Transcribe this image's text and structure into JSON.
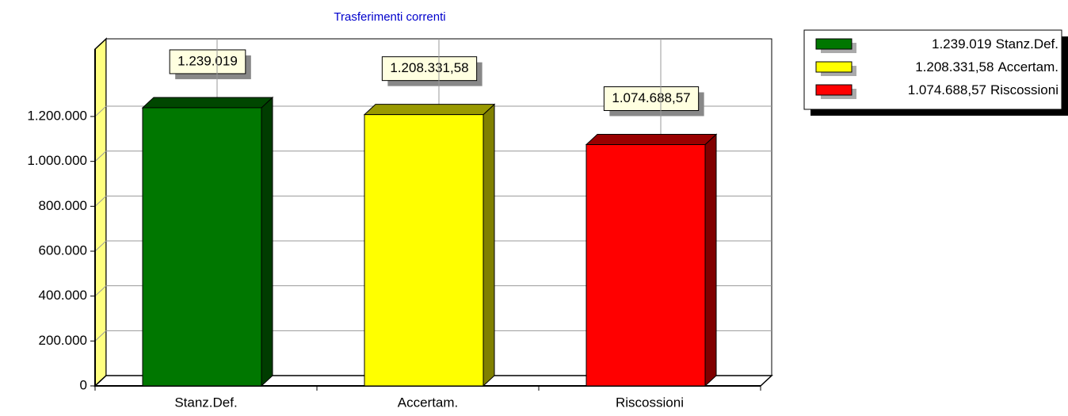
{
  "chart_data": {
    "type": "bar3d",
    "title": "Trasferimenti correnti",
    "categories": [
      "Stanz.Def.",
      "Accertam.",
      "Riscossioni"
    ],
    "values": [
      1239019,
      1208331.58,
      1074688.57
    ],
    "value_labels": [
      "1.239.019",
      "1.208.331,58",
      "1.074.688,57"
    ],
    "colors": [
      "#007700",
      "#ffff00",
      "#ff0000"
    ],
    "ylim": [
      0,
      1500000
    ],
    "yticks": [
      0,
      {
        "value": 200000,
        "label": "200.000"
      },
      {
        "value": 400000,
        "label": "400.000"
      },
      {
        "value": 600000,
        "label": "600.000"
      },
      {
        "value": 800000,
        "label": "800.000"
      },
      {
        "value": 1000000,
        "label": "1.000.000"
      },
      {
        "value": 1200000,
        "label": "1.200.000"
      }
    ],
    "grid": true,
    "legend": "top-right"
  }
}
